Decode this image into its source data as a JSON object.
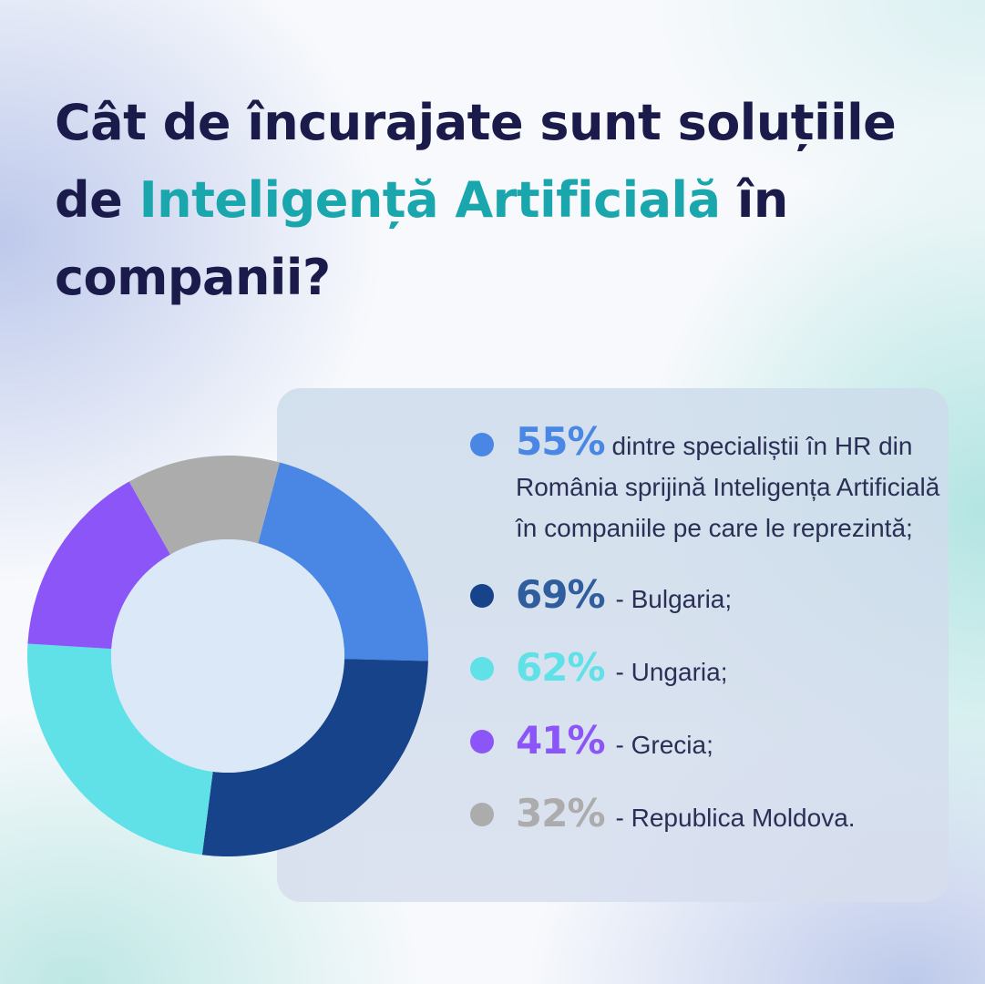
{
  "title": {
    "part1": "Cât de încurajate sunt soluțiile de ",
    "highlight": "Inteligență Artificială",
    "part2": " în companii?"
  },
  "colors": {
    "title": "#1b1b4b",
    "highlight": "#1aa6ad",
    "donut_hole": "#dbe8f8"
  },
  "chart_data": {
    "type": "pie",
    "variant": "donut",
    "labels": [
      "România",
      "Bulgaria",
      "Ungaria",
      "Grecia",
      "Republica Moldova"
    ],
    "values": [
      55,
      69,
      62,
      41,
      32
    ],
    "value_unit": "%",
    "colors": [
      "#4a87e5",
      "#17438b",
      "#5fe1e7",
      "#8b55f8",
      "#acacac"
    ],
    "legend_position": "right"
  },
  "legend": [
    {
      "pct": "55%",
      "text": "dintre specialiștii în HR din România sprijină Inteligența Artificială în companiile pe care le reprezintă;",
      "color": "#4a87e5",
      "dot": "#4a87e5"
    },
    {
      "pct": "69%",
      "text": "- Bulgaria;",
      "color": "#2f5d9e",
      "dot": "#17438b"
    },
    {
      "pct": "62%",
      "text": "- Ungaria;",
      "color": "#5fe1e7",
      "dot": "#5fe1e7"
    },
    {
      "pct": "41%",
      "text": "- Grecia;",
      "color": "#8b55f8",
      "dot": "#8b55f8"
    },
    {
      "pct": "32%",
      "text": "- Republica Moldova.",
      "color": "#acacac",
      "dot": "#acacac"
    }
  ]
}
